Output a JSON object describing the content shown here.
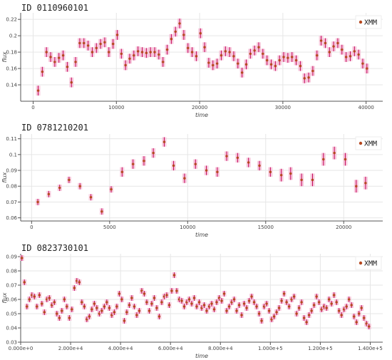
{
  "chart_data": [
    {
      "type": "scatter",
      "title": "ID 0110960101",
      "xlabel": "time",
      "ylabel": "flux",
      "xlim": [
        -1500,
        42000
      ],
      "ylim": [
        0.12,
        0.228
      ],
      "xticks": [
        0,
        10000,
        20000,
        30000,
        40000
      ],
      "xtick_labels": [
        "0",
        "10000",
        "20000",
        "30000",
        "40000"
      ],
      "yticks": [
        0.14,
        0.16,
        0.18,
        0.2,
        0.22
      ],
      "ytick_labels": [
        "0.14",
        "0.16",
        "0.18",
        "0.2",
        "0.22"
      ],
      "grid": true,
      "legend": {
        "placement": "top-right",
        "label": "XMM"
      },
      "colors": {
        "marker": "#b5481f",
        "error": "#c3005a",
        "band": "#f4b8d2"
      },
      "series": [
        {
          "name": "XMM",
          "x": [
            600,
            1100,
            1600,
            2100,
            2600,
            3100,
            3600,
            4100,
            4600,
            5100,
            5600,
            6100,
            6600,
            7100,
            7600,
            8100,
            8600,
            9100,
            9600,
            10100,
            10600,
            11100,
            11600,
            12100,
            12600,
            13100,
            13600,
            14100,
            14600,
            15100,
            15600,
            16100,
            16600,
            17100,
            17600,
            18100,
            18600,
            19100,
            19600,
            20100,
            20600,
            21100,
            21600,
            22100,
            22600,
            23100,
            23600,
            24100,
            24600,
            25100,
            25600,
            26100,
            26600,
            27100,
            27600,
            28100,
            28600,
            29100,
            29600,
            30100,
            30600,
            31100,
            31600,
            32100,
            32600,
            33100,
            33600,
            34100,
            34600,
            35100,
            35600,
            36100,
            36600,
            37100,
            37600,
            38100,
            38600,
            39100,
            39600,
            40100
          ],
          "y": [
            0.133,
            0.156,
            0.18,
            0.174,
            0.168,
            0.173,
            0.176,
            0.162,
            0.143,
            0.168,
            0.191,
            0.191,
            0.188,
            0.18,
            0.185,
            0.19,
            0.192,
            0.18,
            0.19,
            0.201,
            0.178,
            0.164,
            0.172,
            0.176,
            0.181,
            0.18,
            0.179,
            0.18,
            0.18,
            0.177,
            0.168,
            0.183,
            0.196,
            0.205,
            0.215,
            0.201,
            0.185,
            0.18,
            0.175,
            0.203,
            0.186,
            0.167,
            0.164,
            0.166,
            0.176,
            0.181,
            0.18,
            0.175,
            0.166,
            0.155,
            0.165,
            0.178,
            0.182,
            0.186,
            0.178,
            0.17,
            0.165,
            0.163,
            0.17,
            0.174,
            0.173,
            0.174,
            0.17,
            0.163,
            0.148,
            0.149,
            0.157,
            0.176,
            0.194,
            0.191,
            0.18,
            0.187,
            0.191,
            0.183,
            0.174,
            0.175,
            0.181,
            0.177,
            0.166,
            0.16
          ],
          "yerr": [
            0.006,
            0.006,
            0.006,
            0.006,
            0.006,
            0.006,
            0.006,
            0.006,
            0.006,
            0.006,
            0.006,
            0.006,
            0.006,
            0.006,
            0.006,
            0.006,
            0.006,
            0.006,
            0.006,
            0.006,
            0.006,
            0.006,
            0.006,
            0.006,
            0.006,
            0.006,
            0.006,
            0.006,
            0.006,
            0.006,
            0.006,
            0.006,
            0.006,
            0.006,
            0.006,
            0.006,
            0.006,
            0.006,
            0.006,
            0.006,
            0.006,
            0.006,
            0.006,
            0.006,
            0.006,
            0.006,
            0.006,
            0.006,
            0.006,
            0.006,
            0.006,
            0.006,
            0.006,
            0.006,
            0.006,
            0.006,
            0.006,
            0.006,
            0.006,
            0.006,
            0.006,
            0.006,
            0.006,
            0.006,
            0.006,
            0.006,
            0.006,
            0.006,
            0.006,
            0.006,
            0.006,
            0.006,
            0.006,
            0.006,
            0.006,
            0.006,
            0.006,
            0.006,
            0.006,
            0.006
          ]
        }
      ]
    },
    {
      "type": "scatter",
      "title": "ID 0781210201",
      "xlabel": "time",
      "ylabel": "flux",
      "xlim": [
        -700,
        22500
      ],
      "ylim": [
        0.058,
        0.113
      ],
      "xticks": [
        0,
        5000,
        10000,
        15000,
        20000
      ],
      "xtick_labels": [
        "0",
        "5000",
        "10000",
        "15000",
        "20000"
      ],
      "yticks": [
        0.06,
        0.07,
        0.08,
        0.09,
        0.1,
        0.11
      ],
      "ytick_labels": [
        "0.06",
        "0.07",
        "0.08",
        "0.09",
        "0.1",
        "0.11"
      ],
      "grid": true,
      "legend": {
        "placement": "top-right",
        "label": "XMM"
      },
      "colors": {
        "marker": "#b5481f",
        "error": "#c3005a",
        "band": "#f4b8d2"
      },
      "series": [
        {
          "name": "XMM",
          "x": [
            400,
            1100,
            1800,
            2400,
            3100,
            3800,
            4500,
            5100,
            5800,
            6500,
            7200,
            7800,
            8500,
            9100,
            9800,
            10500,
            11200,
            11900,
            12500,
            13200,
            13900,
            14600,
            15300,
            16000,
            16600,
            17300,
            18000,
            18700,
            19400,
            20100,
            20800,
            21400
          ],
          "y": [
            0.07,
            0.075,
            0.079,
            0.084,
            0.08,
            0.073,
            0.064,
            0.078,
            0.089,
            0.094,
            0.096,
            0.101,
            0.108,
            0.093,
            0.085,
            0.094,
            0.09,
            0.089,
            0.099,
            0.098,
            0.095,
            0.093,
            0.089,
            0.087,
            0.088,
            0.084,
            0.084,
            0.097,
            0.101,
            0.097,
            0.08,
            0.082
          ],
          "yerr": [
            0.002,
            0.002,
            0.002,
            0.002,
            0.002,
            0.002,
            0.002,
            0.002,
            0.003,
            0.003,
            0.003,
            0.003,
            0.003,
            0.003,
            0.003,
            0.003,
            0.003,
            0.003,
            0.003,
            0.003,
            0.003,
            0.003,
            0.003,
            0.004,
            0.004,
            0.004,
            0.004,
            0.004,
            0.004,
            0.004,
            0.004,
            0.004
          ]
        }
      ]
    },
    {
      "type": "scatter",
      "title": "ID 0823730101",
      "xlabel": "time",
      "ylabel": "flux",
      "xlim": [
        0,
        145000
      ],
      "ylim": [
        0.03,
        0.092
      ],
      "xticks": [
        0,
        20000,
        40000,
        60000,
        80000,
        100000,
        120000,
        140000
      ],
      "xtick_labels": [
        "0.000e+0",
        "2.000e+4",
        "4.000e+4",
        "6.000e+4",
        "8.000e+4",
        "1.000e+5",
        "1.200e+5",
        "1.400e+5"
      ],
      "yticks": [
        0.03,
        0.04,
        0.05,
        0.06,
        0.07,
        0.08,
        0.09
      ],
      "ytick_labels": [
        "0.03",
        "0.04",
        "0.05",
        "0.06",
        "0.07",
        "0.08",
        "0.09"
      ],
      "grid": true,
      "legend": {
        "placement": "top-right",
        "label": "XMM"
      },
      "colors": {
        "marker": "#b5481f",
        "error": "#c3005a",
        "band": "#f4b8d2"
      },
      "series": [
        {
          "name": "XMM",
          "x": [
            500,
            1500,
            2500,
            3500,
            4500,
            5500,
            6500,
            7500,
            8500,
            9500,
            10500,
            11500,
            12500,
            13500,
            14500,
            15500,
            16500,
            17500,
            18500,
            19500,
            20500,
            21500,
            22500,
            23500,
            24500,
            25500,
            26500,
            27500,
            28500,
            29500,
            30500,
            31500,
            32500,
            33500,
            34500,
            35500,
            36500,
            37500,
            38500,
            39500,
            40500,
            41500,
            42500,
            43500,
            44500,
            45500,
            46500,
            47500,
            48500,
            49500,
            50500,
            51500,
            52500,
            53500,
            54500,
            55500,
            56500,
            57500,
            58500,
            59500,
            60500,
            61500,
            62500,
            63500,
            64500,
            65500,
            66500,
            67500,
            68500,
            69500,
            70500,
            71500,
            72500,
            73500,
            74500,
            75500,
            76500,
            77500,
            78500,
            79500,
            80500,
            81500,
            82500,
            83500,
            84500,
            85500,
            86500,
            87500,
            88500,
            89500,
            90500,
            91500,
            92500,
            93500,
            94500,
            95500,
            96500,
            97500,
            98500,
            99500,
            100500,
            101500,
            102500,
            103500,
            104500,
            105500,
            106500,
            107500,
            108500,
            109500,
            110500,
            111500,
            112500,
            113500,
            114500,
            115500,
            116500,
            117500,
            118500,
            119500,
            120500,
            121500,
            122500,
            123500,
            124500,
            125500,
            126500,
            127500,
            128500,
            129500,
            130500,
            131500,
            132500,
            133500,
            134500,
            135500,
            136500,
            137500,
            138500,
            139500
          ],
          "y": [
            0.089,
            0.072,
            0.055,
            0.06,
            0.063,
            0.062,
            0.055,
            0.063,
            0.057,
            0.051,
            0.06,
            0.061,
            0.056,
            0.058,
            0.05,
            0.047,
            0.052,
            0.06,
            0.055,
            0.047,
            0.053,
            0.068,
            0.073,
            0.072,
            0.058,
            0.055,
            0.046,
            0.048,
            0.053,
            0.057,
            0.054,
            0.05,
            0.052,
            0.055,
            0.058,
            0.054,
            0.049,
            0.051,
            0.055,
            0.064,
            0.06,
            0.045,
            0.051,
            0.056,
            0.061,
            0.055,
            0.049,
            0.052,
            0.066,
            0.064,
            0.058,
            0.052,
            0.057,
            0.061,
            0.054,
            0.048,
            0.058,
            0.062,
            0.063,
            0.056,
            0.066,
            0.077,
            0.066,
            0.06,
            0.059,
            0.055,
            0.058,
            0.06,
            0.057,
            0.061,
            0.055,
            0.058,
            0.054,
            0.056,
            0.052,
            0.055,
            0.057,
            0.053,
            0.058,
            0.061,
            0.059,
            0.064,
            0.052,
            0.055,
            0.058,
            0.06,
            0.052,
            0.056,
            0.049,
            0.057,
            0.054,
            0.059,
            0.062,
            0.058,
            0.055,
            0.05,
            0.045,
            0.055,
            0.057,
            0.052,
            0.046,
            0.048,
            0.051,
            0.054,
            0.059,
            0.064,
            0.058,
            0.055,
            0.06,
            0.062,
            0.05,
            0.054,
            0.058,
            0.047,
            0.044,
            0.049,
            0.052,
            0.056,
            0.062,
            0.058,
            0.053,
            0.055,
            0.054,
            0.06,
            0.057,
            0.063,
            0.058,
            0.052,
            0.049,
            0.053,
            0.055,
            0.06,
            0.056,
            0.048,
            0.044,
            0.05,
            0.054,
            0.047,
            0.043,
            0.041
          ],
          "yerr": [
            0.002,
            0.002,
            0.002,
            0.002,
            0.002,
            0.002,
            0.002,
            0.002,
            0.002,
            0.002,
            0.002,
            0.002,
            0.002,
            0.002,
            0.002,
            0.002,
            0.002,
            0.002,
            0.002,
            0.002,
            0.002,
            0.002,
            0.002,
            0.002,
            0.002,
            0.002,
            0.002,
            0.002,
            0.002,
            0.002,
            0.002,
            0.002,
            0.002,
            0.002,
            0.002,
            0.002,
            0.002,
            0.002,
            0.002,
            0.002,
            0.002,
            0.002,
            0.002,
            0.002,
            0.002,
            0.002,
            0.002,
            0.002,
            0.002,
            0.002,
            0.002,
            0.002,
            0.002,
            0.002,
            0.002,
            0.002,
            0.002,
            0.002,
            0.002,
            0.002,
            0.002,
            0.002,
            0.002,
            0.002,
            0.002,
            0.002,
            0.002,
            0.002,
            0.002,
            0.002,
            0.002,
            0.002,
            0.002,
            0.002,
            0.002,
            0.002,
            0.002,
            0.002,
            0.002,
            0.002,
            0.002,
            0.002,
            0.002,
            0.002,
            0.002,
            0.002,
            0.002,
            0.002,
            0.002,
            0.002,
            0.002,
            0.002,
            0.002,
            0.002,
            0.002,
            0.002,
            0.002,
            0.002,
            0.002,
            0.002,
            0.002,
            0.002,
            0.002,
            0.002,
            0.002,
            0.002,
            0.002,
            0.002,
            0.002,
            0.002,
            0.002,
            0.002,
            0.002,
            0.002,
            0.002,
            0.002,
            0.002,
            0.002,
            0.002,
            0.002,
            0.002,
            0.002,
            0.002,
            0.002,
            0.002,
            0.002,
            0.002,
            0.002,
            0.002,
            0.002,
            0.002,
            0.002,
            0.002,
            0.002,
            0.002,
            0.002,
            0.002,
            0.002,
            0.002,
            0.002
          ]
        }
      ]
    }
  ]
}
